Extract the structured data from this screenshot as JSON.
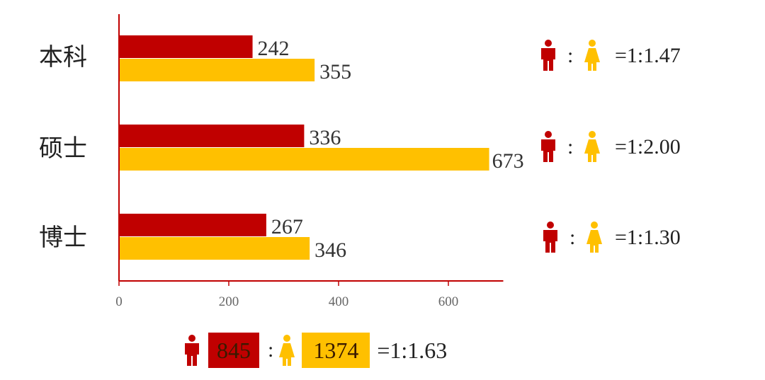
{
  "colors": {
    "male": "#c00000",
    "female": "#ffc000",
    "axis": "#c00000"
  },
  "icons": {
    "male": "male-person-icon",
    "female": "female-person-icon"
  },
  "chart_data": {
    "type": "bar",
    "orientation": "horizontal",
    "categories": [
      "本科",
      "硕士",
      "博士"
    ],
    "series": [
      {
        "values": [
          242,
          336,
          267
        ]
      },
      {
        "values": [
          355,
          673,
          346
        ]
      }
    ],
    "xlim": [
      0,
      700
    ],
    "x_ticks": [
      "0",
      "200",
      "400",
      "600"
    ],
    "grid": false,
    "ratios": [
      {
        "colon": ":",
        "text": "=1:1.47"
      },
      {
        "colon": ":",
        "text": "=1:2.00"
      },
      {
        "colon": ":",
        "text": "=1:1.30"
      }
    ]
  },
  "summary": {
    "male_total": "845",
    "colon": ":",
    "female_total": "1374",
    "ratio": "=1:1.63"
  }
}
